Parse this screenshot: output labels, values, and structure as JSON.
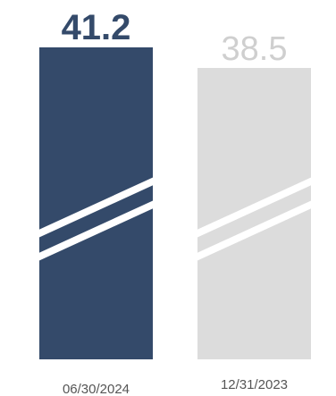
{
  "chart_data": {
    "type": "bar",
    "categories": [
      "06/30/2024",
      "12/31/2023"
    ],
    "values": [
      41.2,
      38.5
    ],
    "value_labels": [
      "41.2",
      "38.5"
    ],
    "axis_break": true,
    "grid": false,
    "legend": "none",
    "colors": {
      "bars": [
        "#344a6a",
        "#dcdcdc"
      ],
      "value_labels": [
        "#344a6a",
        "#cfcfcf"
      ],
      "category_labels": "#555555",
      "break_lines": "#ffffff"
    }
  }
}
